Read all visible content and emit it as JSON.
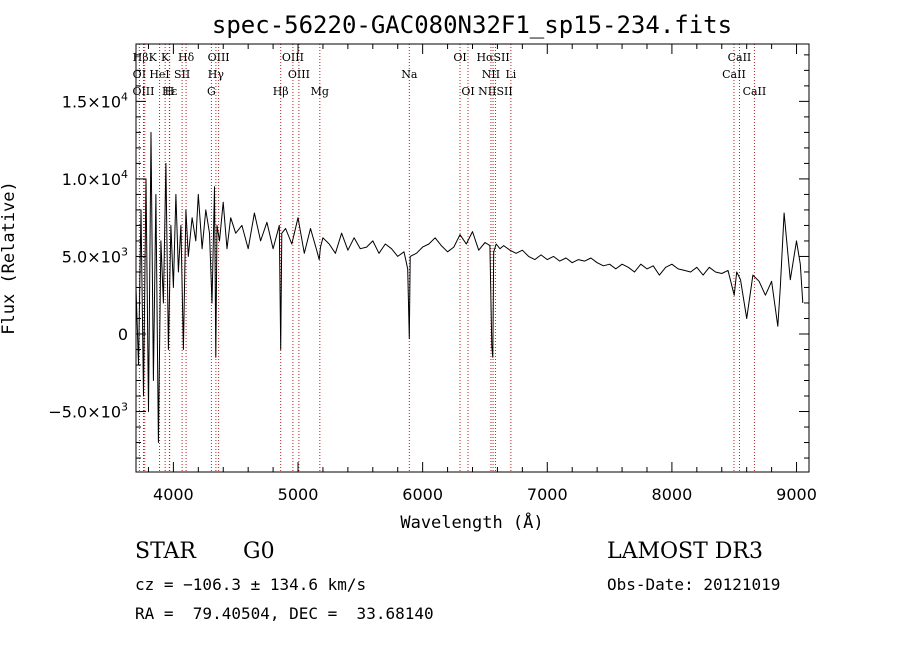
{
  "chart_data": {
    "type": "line",
    "title": "spec-56220-GAC080N32F1_sp15-234.fits",
    "xlabel": "Wavelength (Å)",
    "ylabel": "Flux (Relative)",
    "xlim": [
      3700,
      9100
    ],
    "ylim": [
      -8900,
      18700
    ],
    "xticks": [
      {
        "value": 4000,
        "label": "4000"
      },
      {
        "value": 5000,
        "label": "5000"
      },
      {
        "value": 6000,
        "label": "6000"
      },
      {
        "value": 7000,
        "label": "7000"
      },
      {
        "value": 8000,
        "label": "8000"
      },
      {
        "value": 9000,
        "label": "9000"
      }
    ],
    "yticks": [
      {
        "value": -5000,
        "label": "−5.0×10",
        "exp": "3"
      },
      {
        "value": 0,
        "label": "0",
        "exp": ""
      },
      {
        "value": 5000,
        "label": "5.0×10",
        "exp": "3"
      },
      {
        "value": 10000,
        "label": "1.0×10",
        "exp": "4"
      },
      {
        "value": 15000,
        "label": "1.5×10",
        "exp": "4"
      }
    ],
    "series": [
      {
        "name": "spectrum",
        "color": "#000000",
        "x": [
          3700,
          3720,
          3740,
          3760,
          3780,
          3800,
          3820,
          3840,
          3860,
          3880,
          3900,
          3920,
          3940,
          3960,
          3980,
          4000,
          4020,
          4040,
          4060,
          4080,
          4100,
          4120,
          4150,
          4180,
          4200,
          4230,
          4260,
          4290,
          4310,
          4330,
          4340,
          4350,
          4370,
          4400,
          4430,
          4460,
          4500,
          4550,
          4600,
          4650,
          4700,
          4750,
          4800,
          4850,
          4861,
          4870,
          4900,
          4950,
          5000,
          5050,
          5100,
          5150,
          5170,
          5180,
          5200,
          5250,
          5300,
          5350,
          5400,
          5450,
          5500,
          5550,
          5600,
          5650,
          5700,
          5750,
          5800,
          5850,
          5880,
          5893,
          5900,
          5950,
          6000,
          6050,
          6100,
          6150,
          6200,
          6250,
          6300,
          6350,
          6400,
          6450,
          6500,
          6540,
          6555,
          6563,
          6570,
          6590,
          6620,
          6650,
          6700,
          6750,
          6800,
          6850,
          6900,
          6950,
          7000,
          7050,
          7100,
          7150,
          7200,
          7250,
          7300,
          7350,
          7400,
          7450,
          7500,
          7550,
          7600,
          7650,
          7700,
          7750,
          7800,
          7850,
          7900,
          7950,
          8000,
          8050,
          8100,
          8150,
          8200,
          8250,
          8300,
          8350,
          8400,
          8450,
          8500,
          8520,
          8550,
          8600,
          8650,
          8700,
          8750,
          8800,
          8850,
          8870,
          8900,
          8950,
          9000,
          9030,
          9050
        ],
        "y": [
          3000,
          -2000,
          8000,
          -4000,
          10000,
          -5000,
          13000,
          -3000,
          9000,
          -7000,
          6000,
          2000,
          11000,
          -1000,
          7000,
          3000,
          9000,
          4000,
          7000,
          -1000,
          8000,
          5000,
          7500,
          6000,
          9000,
          5500,
          8000,
          6500,
          2000,
          9500,
          -1500,
          7000,
          6000,
          8500,
          5500,
          7500,
          6500,
          7000,
          5500,
          7800,
          6000,
          7200,
          5500,
          7000,
          -1000,
          6500,
          6800,
          5800,
          7500,
          5200,
          6800,
          5400,
          4800,
          5600,
          6200,
          5800,
          5200,
          6500,
          5400,
          6200,
          5500,
          5600,
          6000,
          5200,
          5800,
          5500,
          5000,
          5300,
          4200,
          -300,
          5000,
          5200,
          5600,
          5800,
          6200,
          5700,
          5300,
          5600,
          6400,
          5800,
          6600,
          5400,
          5900,
          5700,
          -800,
          -1500,
          5300,
          5800,
          5500,
          5700,
          5400,
          5200,
          5400,
          5000,
          4800,
          5100,
          4800,
          5000,
          4700,
          4900,
          4600,
          4800,
          4700,
          4900,
          4600,
          4400,
          4500,
          4200,
          4500,
          4300,
          4000,
          4500,
          4200,
          4400,
          3800,
          4300,
          4500,
          4200,
          4100,
          4000,
          4300,
          3800,
          4300,
          4000,
          3900,
          4100,
          2500,
          4000,
          3500,
          1000,
          3800,
          3400,
          2500,
          3400,
          500,
          3000,
          7800,
          3500,
          6000,
          4500,
          2000
        ]
      }
    ],
    "lines": [
      {
        "label": "HβK",
        "wl": 3770,
        "row": 1
      },
      {
        "label": "K",
        "wl": 3934,
        "row": 1
      },
      {
        "label": "Hδ",
        "wl": 4102,
        "row": 1
      },
      {
        "label": "OIII",
        "wl": 4363,
        "row": 1
      },
      {
        "label": "OIII",
        "wl": 4959,
        "row": 1
      },
      {
        "label": "OI",
        "wl": 6300,
        "row": 1
      },
      {
        "label": "HαSII",
        "wl": 6565,
        "row": 1
      },
      {
        "label": "CaII",
        "wl": 8542,
        "row": 1
      },
      {
        "label": "OI",
        "wl": 3727,
        "row": 2
      },
      {
        "label": "HeI",
        "wl": 3889,
        "row": 2
      },
      {
        "label": "SII",
        "wl": 4070,
        "row": 2
      },
      {
        "label": "Hγ",
        "wl": 4341,
        "row": 2
      },
      {
        "label": "OIII",
        "wl": 5007,
        "row": 2
      },
      {
        "label": "Na",
        "wl": 5893,
        "row": 2
      },
      {
        "label": "NII",
        "wl": 6548,
        "row": 2
      },
      {
        "label": "Li",
        "wl": 6708,
        "row": 2
      },
      {
        "label": "CaII",
        "wl": 8498,
        "row": 2
      },
      {
        "label": "OIII",
        "wl": 3760,
        "row": 3
      },
      {
        "label": "Hε",
        "wl": 3970,
        "row": 3
      },
      {
        "label": "H",
        "wl": 3968,
        "row": 3
      },
      {
        "label": "G",
        "wl": 4305,
        "row": 3
      },
      {
        "label": "Hβ",
        "wl": 4861,
        "row": 3
      },
      {
        "label": "Mg",
        "wl": 5175,
        "row": 3
      },
      {
        "label": "OI",
        "wl": 6364,
        "row": 3
      },
      {
        "label": "NIISII",
        "wl": 6584,
        "row": 3
      },
      {
        "label": "CaII",
        "wl": 8662,
        "row": 3
      }
    ],
    "line_marker_color": "#b22222"
  },
  "info": {
    "class": "STAR",
    "subclass": "G0",
    "survey": "LAMOST DR3",
    "velocity": "cz = −106.3 ± 134.6 km/s",
    "obs_date": "Obs-Date: 20121019",
    "coords": "RA =  79.40504, DEC =  33.68140"
  }
}
